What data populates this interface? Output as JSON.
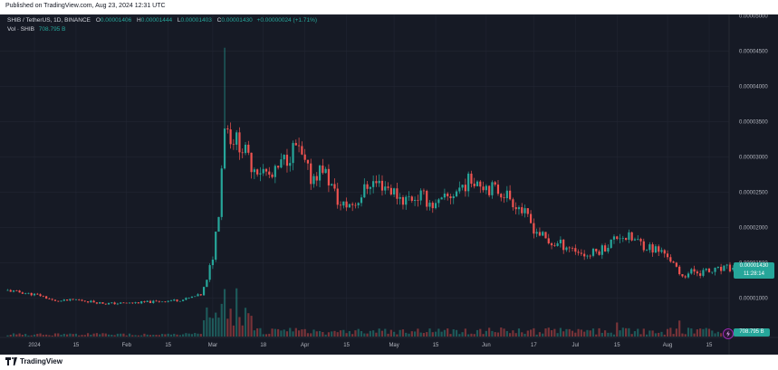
{
  "header": {
    "published": "Published on TradingView.com, Aug 23, 2024 12:31 UTC"
  },
  "legend": {
    "symbol": "SHIB / TetherUS, 1D, BINANCE",
    "o_label": "O",
    "o_value": "0.00001406",
    "h_label": "H",
    "h_value": "0.00001444",
    "l_label": "L",
    "l_value": "0.00001403",
    "c_label": "C",
    "c_value": "0.00001430",
    "change": "+0.00000024 (+1.71%)",
    "vol_label": "Vol · SHIB",
    "vol_value": "708.795 B"
  },
  "price_tag": {
    "price": "0.00001430",
    "countdown": "11:28:14"
  },
  "volume_tag": {
    "value": "708.795 B"
  },
  "footer": {
    "brand": "TradingView"
  },
  "colors": {
    "up": "#26a69a",
    "down": "#ef5350",
    "background": "#161a25",
    "grid": "#222633",
    "axis_text": "#b2b5be"
  },
  "icons": {
    "alert": "lightning-icon",
    "logo": "tradingview-logo-icon"
  },
  "chart_data": {
    "type": "candlestick",
    "symbol": "SHIB / TetherUS",
    "interval": "1D",
    "exchange": "BINANCE",
    "y_ticks": [
      "0.00005000",
      "0.00004500",
      "0.00004000",
      "0.00003500",
      "0.00003000",
      "0.00002500",
      "0.00002000",
      "0.00001500",
      "0.00001000"
    ],
    "y_tick_values": [
      5e-05,
      4.5e-05,
      4e-05,
      3.5e-05,
      3e-05,
      2.5e-05,
      2e-05,
      1.5e-05,
      1e-05
    ],
    "x_ticks": [
      "2024",
      "15",
      "Feb",
      "15",
      "Mar",
      "18",
      "Apr",
      "15",
      "May",
      "15",
      "Jun",
      "17",
      "Jul",
      "15",
      "Aug",
      "15"
    ],
    "x_tick_dates": [
      "2024-01-01",
      "2024-01-15",
      "2024-02-01",
      "2024-02-15",
      "2024-03-01",
      "2024-03-18",
      "2024-04-01",
      "2024-04-15",
      "2024-05-01",
      "2024-05-15",
      "2024-06-01",
      "2024-06-17",
      "2024-07-01",
      "2024-07-15",
      "2024-08-01",
      "2024-08-15"
    ],
    "close_path": [
      [
        "2023-12-23",
        1.11e-05
      ],
      [
        "2024-01-03",
        1.04e-05
      ],
      [
        "2024-01-08",
        9.55e-06
      ],
      [
        "2024-01-15",
        9.8e-06
      ],
      [
        "2024-01-25",
        9.25e-06
      ],
      [
        "2024-02-01",
        9.3e-06
      ],
      [
        "2024-02-10",
        9.5e-06
      ],
      [
        "2024-02-20",
        9.8e-06
      ],
      [
        "2024-02-26",
        1.05e-05
      ],
      [
        "2024-02-28",
        1.25e-05
      ],
      [
        "2024-03-01",
        1.6e-05
      ],
      [
        "2024-03-03",
        2.25e-05
      ],
      [
        "2024-03-05",
        3.5e-05
      ],
      [
        "2024-03-07",
        3.3e-05
      ],
      [
        "2024-03-10",
        3.2e-05
      ],
      [
        "2024-03-14",
        2.9e-05
      ],
      [
        "2024-03-18",
        2.8e-05
      ],
      [
        "2024-03-21",
        2.7e-05
      ],
      [
        "2024-03-25",
        2.95e-05
      ],
      [
        "2024-03-29",
        3.15e-05
      ],
      [
        "2024-04-03",
        2.7e-05
      ],
      [
        "2024-04-07",
        2.85e-05
      ],
      [
        "2024-04-13",
        2.3e-05
      ],
      [
        "2024-04-18",
        2.35e-05
      ],
      [
        "2024-04-23",
        2.65e-05
      ],
      [
        "2024-04-28",
        2.6e-05
      ],
      [
        "2024-05-04",
        2.4e-05
      ],
      [
        "2024-05-10",
        2.45e-05
      ],
      [
        "2024-05-15",
        2.3e-05
      ],
      [
        "2024-05-20",
        2.45e-05
      ],
      [
        "2024-05-24",
        2.6e-05
      ],
      [
        "2024-05-28",
        2.7e-05
      ],
      [
        "2024-06-03",
        2.55e-05
      ],
      [
        "2024-06-07",
        2.5e-05
      ],
      [
        "2024-06-12",
        2.3e-05
      ],
      [
        "2024-06-17",
        2e-05
      ],
      [
        "2024-06-22",
        1.78e-05
      ],
      [
        "2024-06-28",
        1.75e-05
      ],
      [
        "2024-07-05",
        1.6e-05
      ],
      [
        "2024-07-10",
        1.7e-05
      ],
      [
        "2024-07-16",
        1.9e-05
      ],
      [
        "2024-07-21",
        1.82e-05
      ],
      [
        "2024-07-26",
        1.72e-05
      ],
      [
        "2024-08-01",
        1.62e-05
      ],
      [
        "2024-08-05",
        1.32e-05
      ],
      [
        "2024-08-10",
        1.38e-05
      ],
      [
        "2024-08-15",
        1.37e-05
      ],
      [
        "2024-08-23",
        1.43e-05
      ]
    ],
    "volume_peaks": [
      [
        "2024-03-05",
        "high"
      ],
      [
        "2024-03-09",
        "high"
      ],
      [
        "2024-07-15",
        "medium"
      ],
      [
        "2024-08-05",
        "medium"
      ]
    ],
    "last_price": 1.43e-05,
    "last_volume": "708.795 B"
  }
}
